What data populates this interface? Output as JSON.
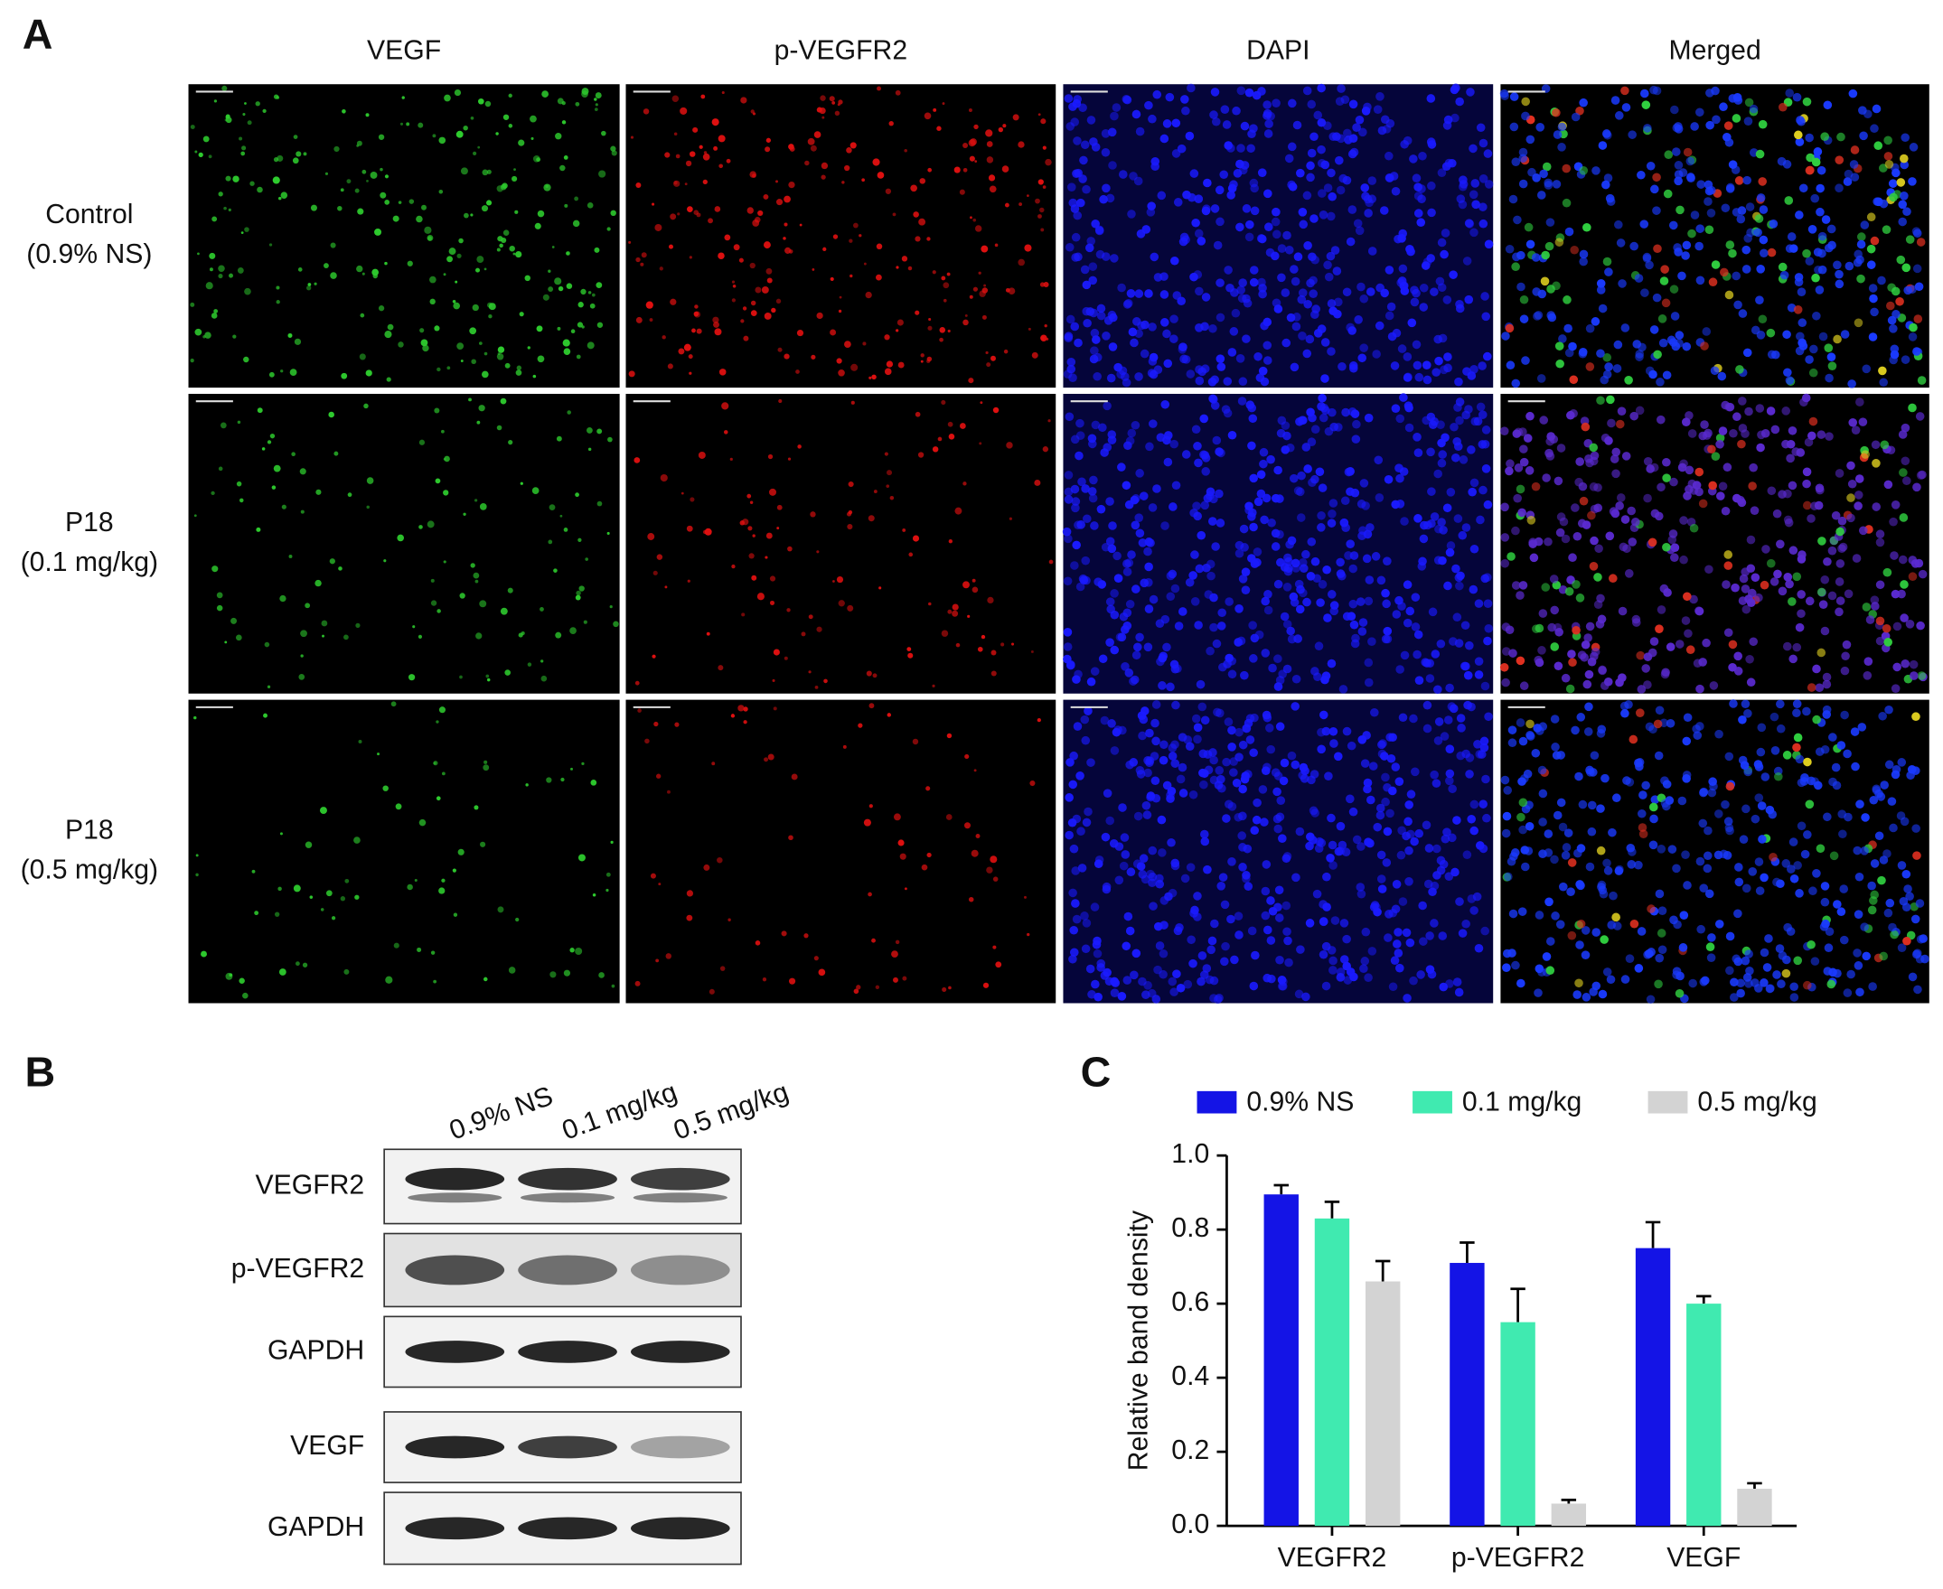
{
  "panel_a": {
    "letter": "A",
    "columns": [
      "VEGF",
      "p-VEGFR2",
      "DAPI",
      "Merged"
    ],
    "rows": [
      [
        "Control",
        "(0.9% NS)"
      ],
      [
        "P18",
        "(0.1 mg/kg)"
      ],
      [
        "P18",
        "(0.5 mg/kg)"
      ]
    ]
  },
  "panel_b": {
    "letter": "B",
    "lanes": [
      "0.9% NS",
      "0.1 mg/kg",
      "0.5 mg/kg"
    ],
    "blots": [
      "VEGFR2",
      "p-VEGFR2",
      "GAPDH",
      "VEGF",
      "GAPDH"
    ]
  },
  "chart_data": {
    "type": "bar",
    "letter": "C",
    "y_label": "Relative band density",
    "categories": [
      "VEGFR2",
      "p-VEGFR2",
      "VEGF"
    ],
    "series": [
      {
        "name": "0.9% NS",
        "color": "#1414e6",
        "values": [
          0.895,
          0.71,
          0.75
        ],
        "errors": [
          0.025,
          0.055,
          0.07
        ]
      },
      {
        "name": "0.1 mg/kg",
        "color": "#40eab0",
        "values": [
          0.83,
          0.55,
          0.6
        ],
        "errors": [
          0.045,
          0.09,
          0.02
        ]
      },
      {
        "name": "0.5 mg/kg",
        "color": "#d3d3d3",
        "values": [
          0.66,
          0.06,
          0.1
        ],
        "errors": [
          0.055,
          0.01,
          0.015
        ]
      }
    ],
    "ylim": [
      0,
      1
    ],
    "yticks": [
      {
        "value": 0,
        "label": "0.0"
      },
      0.2,
      0.4,
      0.6,
      0.8,
      {
        "value": 1,
        "label": "1.0"
      }
    ],
    "legend": "top"
  }
}
